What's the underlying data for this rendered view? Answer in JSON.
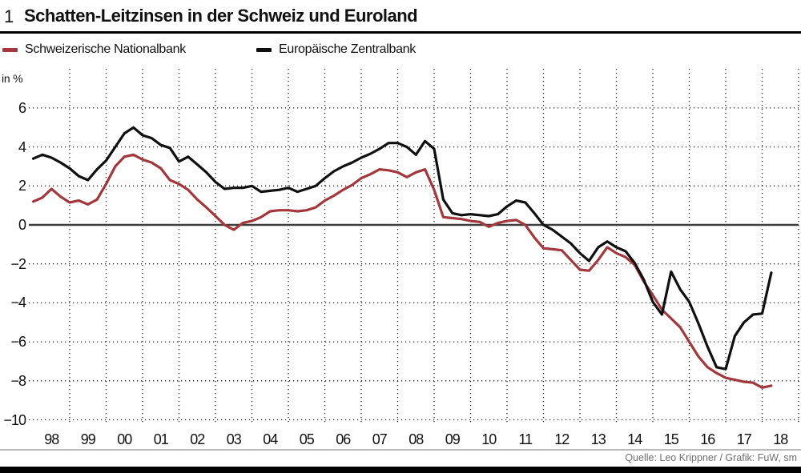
{
  "title": {
    "number": "1",
    "text": "Schatten-Leitzinsen in der Schweiz und Euroland"
  },
  "legend": [
    {
      "label": "Schweizerische Nationalbank",
      "color": "#a3383c"
    },
    {
      "label": "Europäische Zentralbank",
      "color": "#101010"
    }
  ],
  "axis": {
    "unit_label": "in %",
    "y_ticks": [
      6,
      4,
      2,
      0,
      -2,
      -4,
      -6,
      -8,
      -10
    ],
    "x_labels": [
      "98",
      "99",
      "00",
      "01",
      "02",
      "03",
      "04",
      "05",
      "06",
      "07",
      "08",
      "09",
      "10",
      "11",
      "12",
      "13",
      "14",
      "15",
      "16",
      "17",
      "18"
    ]
  },
  "source": "Quelle: Leo Krippner / Grafik: FuW, sm",
  "chart_data": {
    "type": "line",
    "title": "Schatten-Leitzinsen in der Schweiz und Euroland",
    "xlabel": "",
    "ylabel": "in %",
    "ylim": [
      -10,
      6
    ],
    "xlim": [
      1998,
      2019
    ],
    "grid": "dotted",
    "legend_position": "top",
    "x": [
      1998.0,
      1998.25,
      1998.5,
      1998.75,
      1999.0,
      1999.25,
      1999.5,
      1999.75,
      2000.0,
      2000.25,
      2000.5,
      2000.75,
      2001.0,
      2001.25,
      2001.5,
      2001.75,
      2002.0,
      2002.25,
      2002.5,
      2002.75,
      2003.0,
      2003.25,
      2003.5,
      2003.75,
      2004.0,
      2004.25,
      2004.5,
      2004.75,
      2005.0,
      2005.25,
      2005.5,
      2005.75,
      2006.0,
      2006.25,
      2006.5,
      2006.75,
      2007.0,
      2007.25,
      2007.5,
      2007.75,
      2008.0,
      2008.25,
      2008.5,
      2008.75,
      2009.0,
      2009.25,
      2009.5,
      2009.75,
      2010.0,
      2010.25,
      2010.5,
      2010.75,
      2011.0,
      2011.25,
      2011.5,
      2011.75,
      2012.0,
      2012.25,
      2012.5,
      2012.75,
      2013.0,
      2013.25,
      2013.5,
      2013.75,
      2014.0,
      2014.25,
      2014.5,
      2014.75,
      2015.0,
      2015.25,
      2015.5,
      2015.75,
      2016.0,
      2016.25,
      2016.5,
      2016.75,
      2017.0,
      2017.25,
      2017.5,
      2017.75,
      2018.0,
      2018.25
    ],
    "series": [
      {
        "name": "Schweizerische Nationalbank",
        "color": "#a3383c",
        "values": [
          1.2,
          1.4,
          1.85,
          1.45,
          1.15,
          1.25,
          1.05,
          1.3,
          2.1,
          3.0,
          3.5,
          3.6,
          3.35,
          3.2,
          2.9,
          2.3,
          2.1,
          1.8,
          1.3,
          0.9,
          0.45,
          0.0,
          -0.25,
          0.1,
          0.2,
          0.4,
          0.7,
          0.75,
          0.75,
          0.7,
          0.75,
          0.9,
          1.25,
          1.5,
          1.8,
          2.05,
          2.4,
          2.6,
          2.85,
          2.8,
          2.7,
          2.45,
          2.7,
          2.85,
          1.8,
          0.4,
          0.35,
          0.3,
          0.2,
          0.15,
          -0.1,
          0.1,
          0.2,
          0.25,
          0.0,
          -0.65,
          -1.2,
          -1.25,
          -1.3,
          -1.8,
          -2.3,
          -2.35,
          -1.8,
          -1.15,
          -1.45,
          -1.65,
          -2.05,
          -2.9,
          -3.6,
          -4.35,
          -4.8,
          -5.25,
          -6.0,
          -6.75,
          -7.3,
          -7.6,
          -7.85,
          -7.95,
          -8.05,
          -8.1,
          -8.35,
          -8.25
        ]
      },
      {
        "name": "Europäische Zentralbank",
        "color": "#101010",
        "values": [
          3.4,
          3.6,
          3.45,
          3.2,
          2.9,
          2.5,
          2.3,
          2.85,
          3.3,
          4.0,
          4.7,
          5.0,
          4.6,
          4.45,
          4.1,
          3.95,
          3.25,
          3.5,
          3.1,
          2.7,
          2.2,
          1.85,
          1.9,
          1.9,
          2.0,
          1.7,
          1.75,
          1.8,
          1.9,
          1.7,
          1.85,
          2.0,
          2.4,
          2.75,
          3.0,
          3.2,
          3.45,
          3.65,
          3.9,
          4.2,
          4.2,
          4.0,
          3.6,
          4.3,
          3.9,
          1.3,
          0.6,
          0.5,
          0.55,
          0.5,
          0.45,
          0.55,
          0.95,
          1.25,
          1.15,
          0.6,
          0.0,
          -0.25,
          -0.6,
          -0.95,
          -1.45,
          -1.85,
          -1.15,
          -0.85,
          -1.15,
          -1.35,
          -1.95,
          -2.8,
          -3.95,
          -4.6,
          -2.4,
          -3.3,
          -3.95,
          -5.05,
          -6.25,
          -7.3,
          -7.4,
          -5.7,
          -5.0,
          -4.6,
          -4.55,
          -2.45
        ]
      }
    ]
  }
}
